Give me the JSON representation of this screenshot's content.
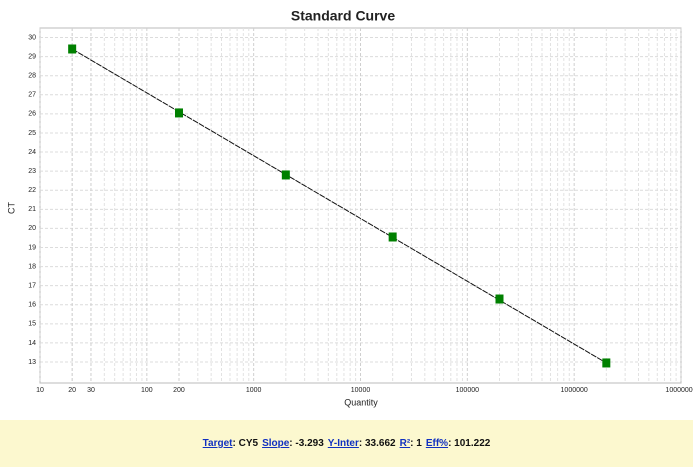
{
  "chart_data": {
    "type": "scatter",
    "title": "Standard Curve",
    "x_label": "Quantity",
    "y_label": "CT",
    "x": [
      20,
      200,
      2000,
      20000,
      200000,
      2000000
    ],
    "series": [
      {
        "name": "CY5",
        "color": "#008000",
        "values": [
          29.4,
          26.05,
          22.8,
          19.55,
          16.3,
          12.95
        ]
      }
    ],
    "xlog": true,
    "xlim": [
      10,
      10000000
    ],
    "xticks": [
      10,
      20,
      30,
      100,
      200,
      1000,
      10000,
      100000,
      1000000,
      10000000
    ],
    "ylim": [
      11.9,
      30.5
    ],
    "yticks": [
      13,
      14,
      15,
      16,
      17,
      18,
      19,
      20,
      21,
      22,
      23,
      24,
      25,
      26,
      27,
      28,
      29,
      30
    ],
    "grid": true,
    "fit_line": true
  },
  "footer": [
    {
      "label": "Target",
      "value": "CY5"
    },
    {
      "label": "Slope",
      "value": "-3.293"
    },
    {
      "label": "Y-Inter",
      "value": "33.662"
    },
    {
      "label": "R²",
      "value": "1"
    },
    {
      "label": "Eff%",
      "value": "101.222"
    }
  ]
}
